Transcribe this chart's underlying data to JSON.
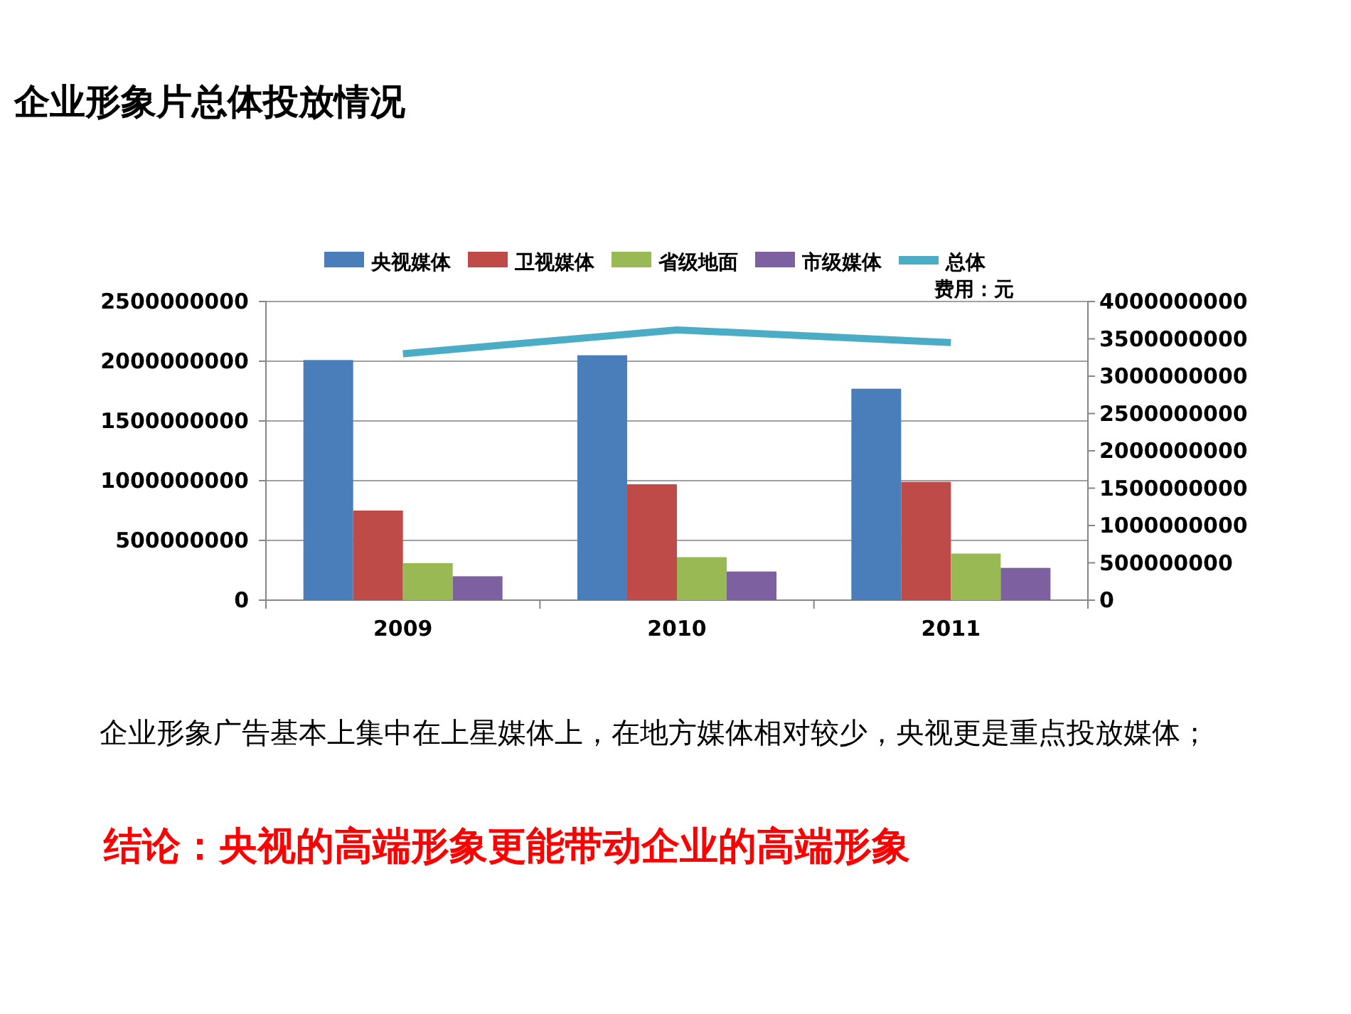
{
  "chart_data": {
    "type": "bar",
    "title": "企业形象片总体投放情况",
    "categories": [
      "2009",
      "2010",
      "2011"
    ],
    "series": [
      {
        "name": "央视媒体",
        "color": "#4a7ebb",
        "values": [
          2010000000,
          2050000000,
          1770000000
        ]
      },
      {
        "name": "卫视媒体",
        "color": "#be4b48",
        "values": [
          750000000,
          970000000,
          990000000
        ]
      },
      {
        "name": "省级地面",
        "color": "#98b954",
        "values": [
          310000000,
          360000000,
          390000000
        ]
      },
      {
        "name": "市级媒体",
        "color": "#7d60a0",
        "values": [
          200000000,
          240000000,
          270000000
        ]
      },
      {
        "name": "总体",
        "type": "line",
        "axis": "y2",
        "color": "#4bacc6",
        "values": [
          3300000000,
          3620000000,
          3450000000
        ]
      }
    ],
    "ylim": [
      0,
      2500000000
    ],
    "yticks": [
      0,
      500000000,
      1000000000,
      1500000000,
      2000000000,
      2500000000
    ],
    "y2lim": [
      0,
      4000000000
    ],
    "y2ticks": [
      0,
      500000000,
      1000000000,
      1500000000,
      2000000000,
      2500000000,
      3000000000,
      3500000000,
      4000000000
    ],
    "y2label": "费用：元",
    "grid": "y",
    "legend": "top",
    "marker": "none",
    "annotations": [
      "企业形象广告基本上集中在上星媒体上，在地方媒体相对较少，央视更是重点投放媒体；",
      "结论：央视的高端形象更能带动企业的高端形象"
    ]
  }
}
